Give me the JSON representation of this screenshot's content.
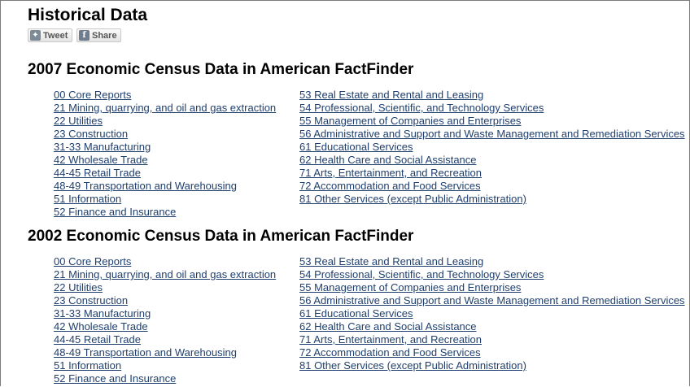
{
  "page": {
    "title": "Historical Data"
  },
  "social": {
    "tweet_label": "Tweet",
    "share_label": "Share"
  },
  "sections": [
    {
      "title": "2007 Economic Census Data in American FactFinder",
      "left_links": [
        "00 Core Reports",
        "21 Mining, quarrying, and oil and gas extraction",
        "22 Utilities",
        "23 Construction",
        "31-33 Manufacturing",
        "42 Wholesale Trade",
        "44-45 Retail Trade",
        "48-49 Transportation and Warehousing",
        "51 Information",
        "52 Finance and Insurance"
      ],
      "right_links": [
        "53 Real Estate and Rental and Leasing",
        "54 Professional, Scientific, and Technology Services",
        "55 Management of Companies and Enterprises",
        "56 Administrative and Support and Waste Management and Remediation Services",
        "61 Educational Services",
        "62 Health Care and Social Assistance",
        "71 Arts, Entertainment, and Recreation",
        "72 Accommodation and Food Services",
        "81 Other Services (except Public Administration)"
      ]
    },
    {
      "title": "2002 Economic Census Data in American FactFinder",
      "left_links": [
        "00 Core Reports",
        "21 Mining, quarrying, and oil and gas extraction",
        "22 Utilities",
        "23 Construction",
        "31-33 Manufacturing",
        "42 Wholesale Trade",
        "44-45 Retail Trade",
        "48-49 Transportation and Warehousing",
        "51 Information",
        "52 Finance and Insurance"
      ],
      "right_links": [
        "53 Real Estate and Rental and Leasing",
        "54 Professional, Scientific, and Technology Services",
        "55 Management of Companies and Enterprises",
        "56 Administrative and Support and Waste Management and Remediation Services",
        "61 Educational Services",
        "62 Health Care and Social Assistance",
        "71 Arts, Entertainment, and Recreation",
        "72 Accommodation and Food Services",
        "81 Other Services (except Public Administration)"
      ]
    }
  ],
  "colors": {
    "link": "#1f3f6e",
    "text": "#000000",
    "frame": "#7a7a7a"
  },
  "icons": {
    "tweet": "twitter-bird-icon",
    "share": "facebook-f-icon"
  }
}
